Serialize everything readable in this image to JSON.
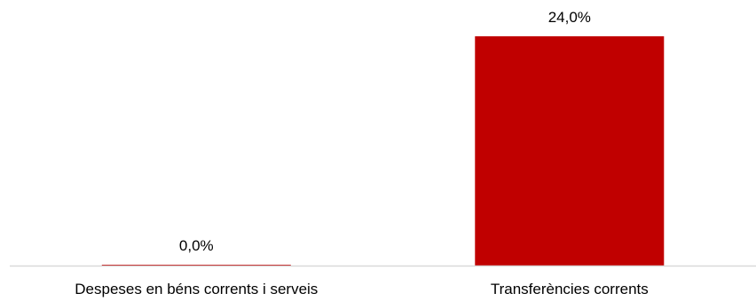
{
  "chart_data": {
    "type": "bar",
    "categories": [
      "Despeses en béns corrents i serveis",
      "Transferències corrents"
    ],
    "values": [
      0.0,
      24.0
    ],
    "value_labels": [
      "0,0%",
      "24,0%"
    ],
    "ylim": [
      0,
      24
    ],
    "grid": false,
    "title": "",
    "xlabel": "",
    "ylabel": "",
    "colors": {
      "bar": "#c00000",
      "axis": "#d9d9d9",
      "text": "#000000"
    }
  }
}
